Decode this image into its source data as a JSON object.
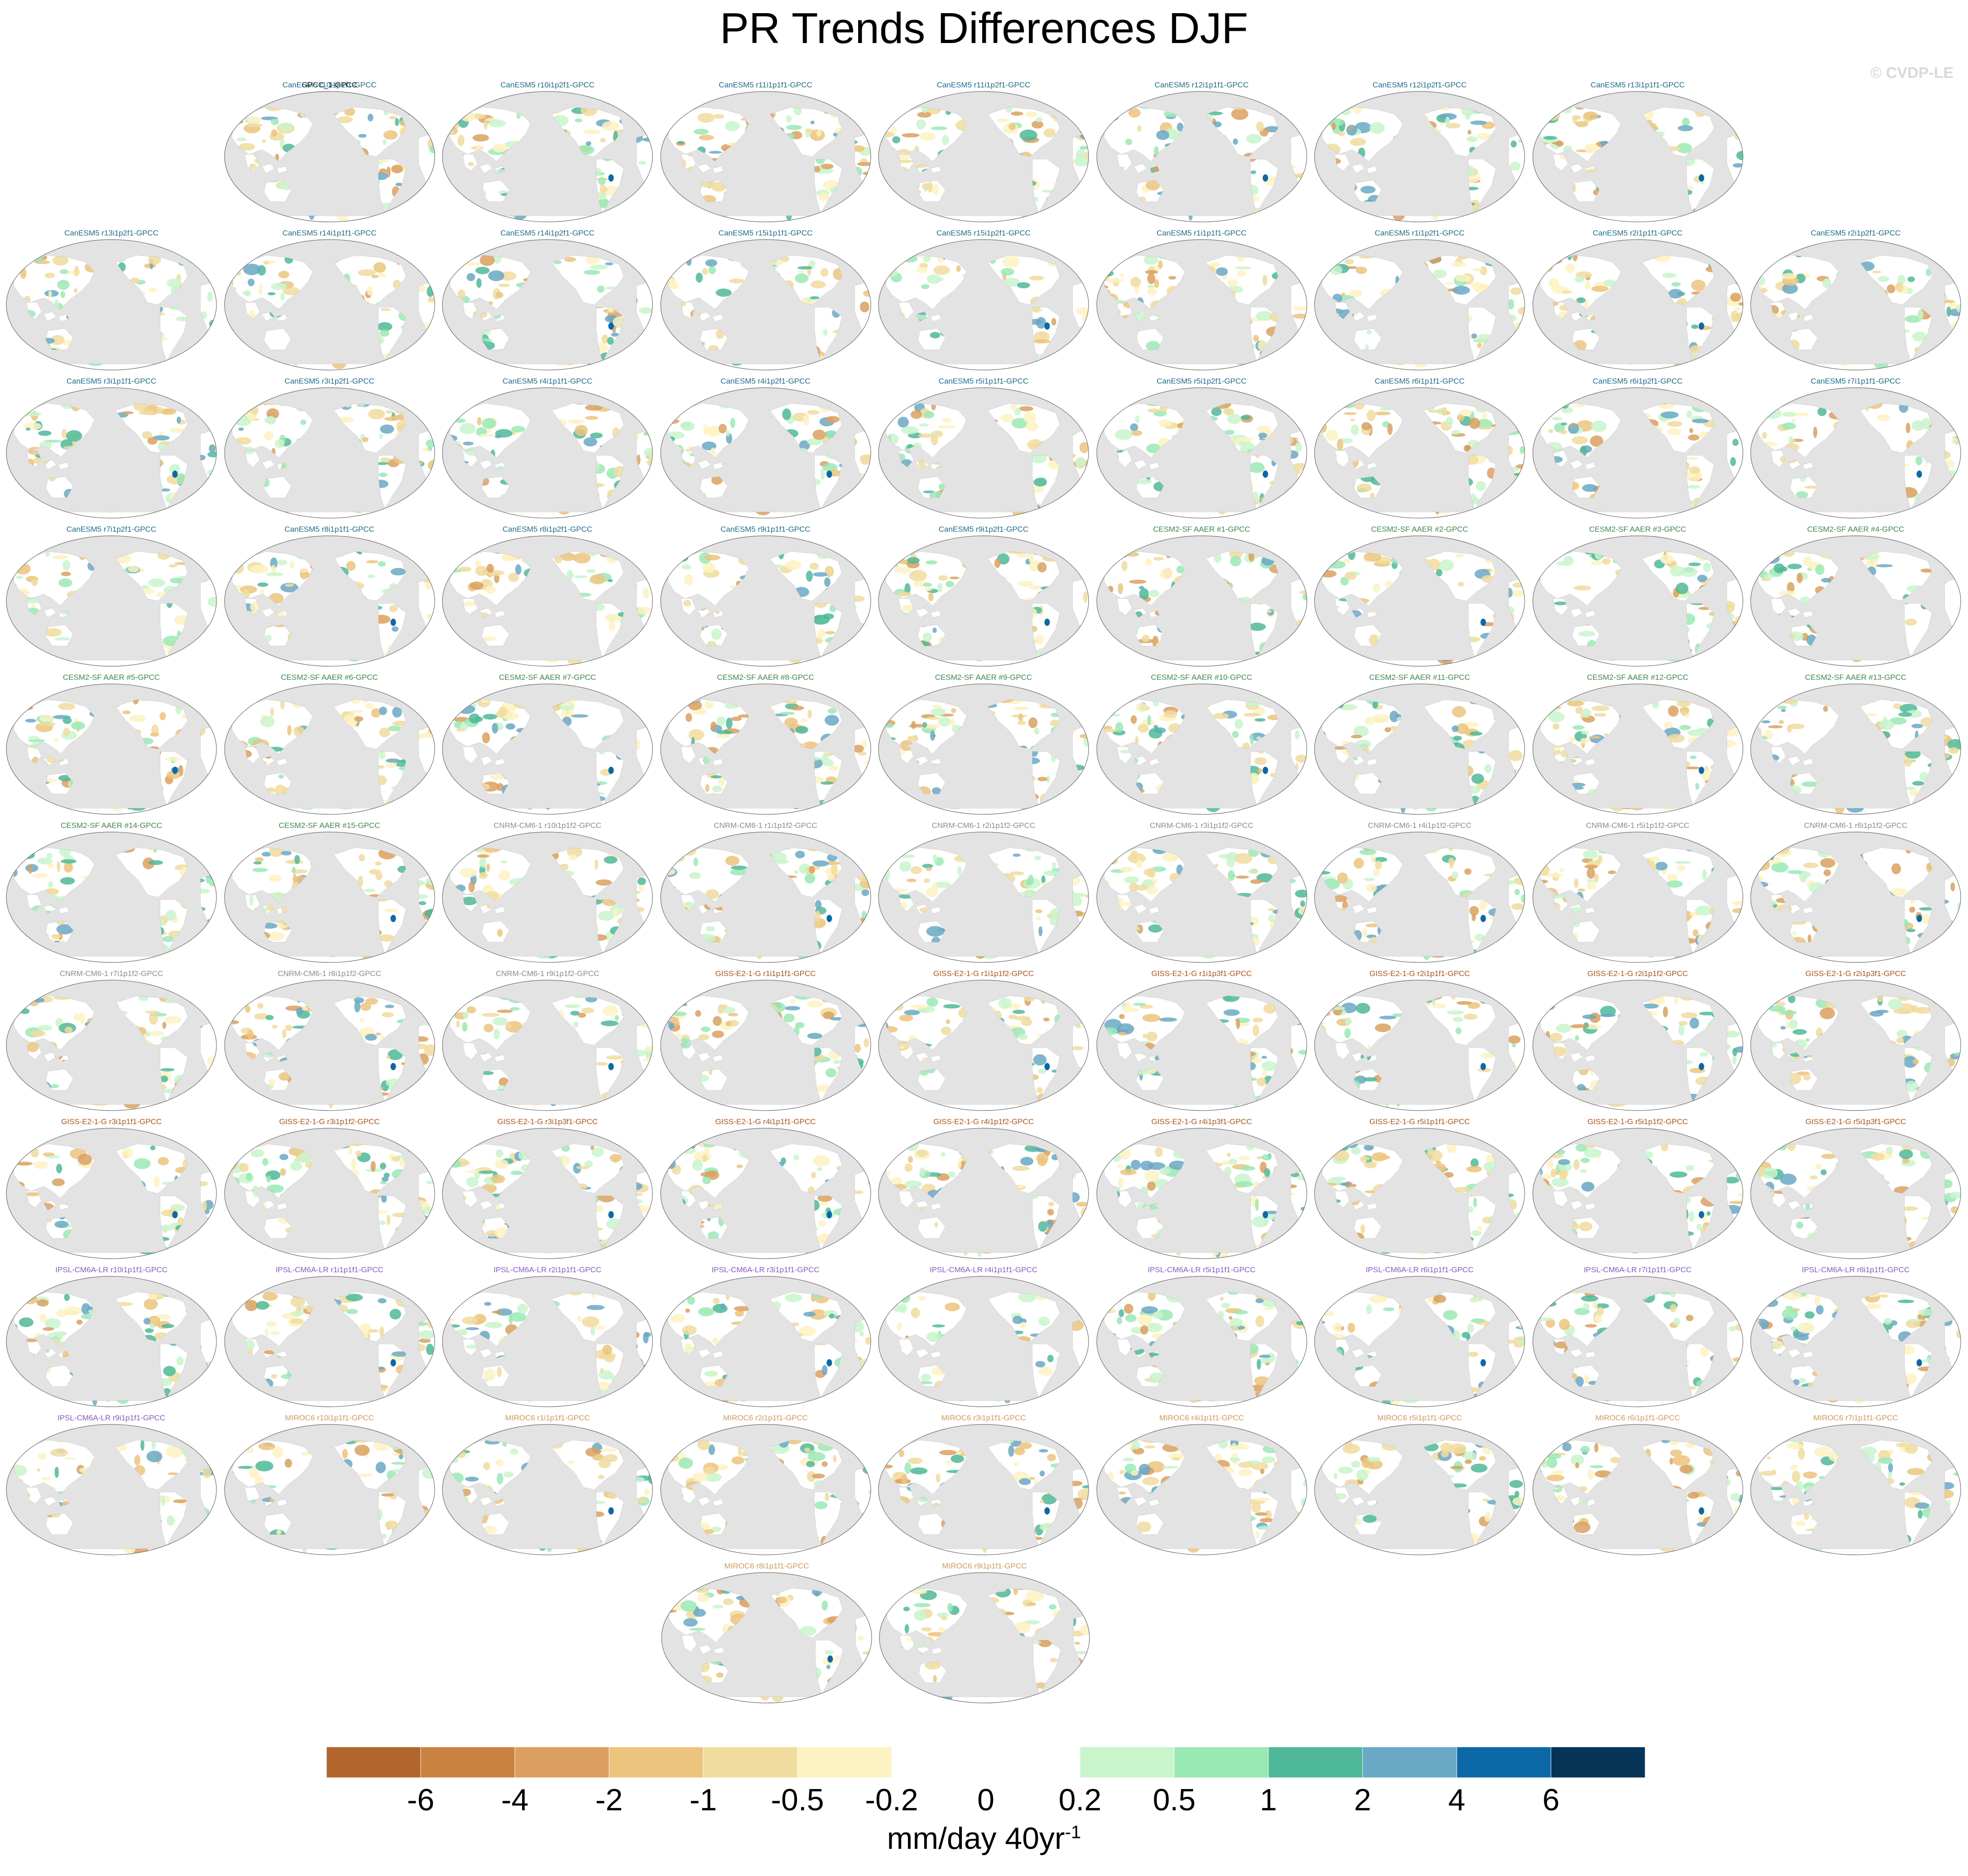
{
  "title": "PR Trends Differences DJF",
  "watermark": "© CVDP-LE",
  "colors": {
    "ocean": "#e3e3e3",
    "land_null": "#ffffff",
    "coastline": "#8c8c8c",
    "model_colors": {
      "GPCC": "#000000",
      "CanESM5": "#1f6e92",
      "CESM2-SF AAER": "#3f8a4f",
      "CNRM-CM6-1": "#8c8c8c",
      "GISS-E2-1-G": "#b5541c",
      "IPSL-CM6A-LR": "#8a5ad1",
      "MIROC6": "#d89a59"
    }
  },
  "panels": [
    {
      "label": "GPCC_1-GPCC",
      "model": "GPCC"
    },
    {
      "label": "CanESM5 r10i1p1f1-GPCC",
      "model": "CanESM5"
    },
    {
      "label": "CanESM5 r10i1p2f1-GPCC",
      "model": "CanESM5"
    },
    {
      "label": "CanESM5 r11i1p1f1-GPCC",
      "model": "CanESM5"
    },
    {
      "label": "CanESM5 r11i1p2f1-GPCC",
      "model": "CanESM5"
    },
    {
      "label": "CanESM5 r12i1p1f1-GPCC",
      "model": "CanESM5"
    },
    {
      "label": "CanESM5 r12i1p2f1-GPCC",
      "model": "CanESM5"
    },
    {
      "label": "CanESM5 r13i1p1f1-GPCC",
      "model": "CanESM5"
    },
    {
      "label": "CanESM5 r13i1p2f1-GPCC",
      "model": "CanESM5"
    },
    {
      "label": "CanESM5 r14i1p1f1-GPCC",
      "model": "CanESM5"
    },
    {
      "label": "CanESM5 r14i1p2f1-GPCC",
      "model": "CanESM5"
    },
    {
      "label": "CanESM5 r15i1p1f1-GPCC",
      "model": "CanESM5"
    },
    {
      "label": "CanESM5 r15i1p2f1-GPCC",
      "model": "CanESM5"
    },
    {
      "label": "CanESM5 r1i1p1f1-GPCC",
      "model": "CanESM5"
    },
    {
      "label": "CanESM5 r1i1p2f1-GPCC",
      "model": "CanESM5"
    },
    {
      "label": "CanESM5 r2i1p1f1-GPCC",
      "model": "CanESM5"
    },
    {
      "label": "CanESM5 r2i1p2f1-GPCC",
      "model": "CanESM5"
    },
    {
      "label": "CanESM5 r3i1p1f1-GPCC",
      "model": "CanESM5"
    },
    {
      "label": "CanESM5 r3i1p2f1-GPCC",
      "model": "CanESM5"
    },
    {
      "label": "CanESM5 r4i1p1f1-GPCC",
      "model": "CanESM5"
    },
    {
      "label": "CanESM5 r4i1p2f1-GPCC",
      "model": "CanESM5"
    },
    {
      "label": "CanESM5 r5i1p1f1-GPCC",
      "model": "CanESM5"
    },
    {
      "label": "CanESM5 r5i1p2f1-GPCC",
      "model": "CanESM5"
    },
    {
      "label": "CanESM5 r6i1p1f1-GPCC",
      "model": "CanESM5"
    },
    {
      "label": "CanESM5 r6i1p2f1-GPCC",
      "model": "CanESM5"
    },
    {
      "label": "CanESM5 r7i1p1f1-GPCC",
      "model": "CanESM5"
    },
    {
      "label": "CanESM5 r7i1p2f1-GPCC",
      "model": "CanESM5"
    },
    {
      "label": "CanESM5 r8i1p1f1-GPCC",
      "model": "CanESM5"
    },
    {
      "label": "CanESM5 r8i1p2f1-GPCC",
      "model": "CanESM5"
    },
    {
      "label": "CanESM5 r9i1p1f1-GPCC",
      "model": "CanESM5"
    },
    {
      "label": "CanESM5 r9i1p2f1-GPCC",
      "model": "CanESM5"
    },
    {
      "label": "CESM2-SF AAER #1-GPCC",
      "model": "CESM2-SF AAER"
    },
    {
      "label": "CESM2-SF AAER #2-GPCC",
      "model": "CESM2-SF AAER"
    },
    {
      "label": "CESM2-SF AAER #3-GPCC",
      "model": "CESM2-SF AAER"
    },
    {
      "label": "CESM2-SF AAER #4-GPCC",
      "model": "CESM2-SF AAER"
    },
    {
      "label": "CESM2-SF AAER #5-GPCC",
      "model": "CESM2-SF AAER"
    },
    {
      "label": "CESM2-SF AAER #6-GPCC",
      "model": "CESM2-SF AAER"
    },
    {
      "label": "CESM2-SF AAER #7-GPCC",
      "model": "CESM2-SF AAER"
    },
    {
      "label": "CESM2-SF AAER #8-GPCC",
      "model": "CESM2-SF AAER"
    },
    {
      "label": "CESM2-SF AAER #9-GPCC",
      "model": "CESM2-SF AAER"
    },
    {
      "label": "CESM2-SF AAER #10-GPCC",
      "model": "CESM2-SF AAER"
    },
    {
      "label": "CESM2-SF AAER #11-GPCC",
      "model": "CESM2-SF AAER"
    },
    {
      "label": "CESM2-SF AAER #12-GPCC",
      "model": "CESM2-SF AAER"
    },
    {
      "label": "CESM2-SF AAER #13-GPCC",
      "model": "CESM2-SF AAER"
    },
    {
      "label": "CESM2-SF AAER #14-GPCC",
      "model": "CESM2-SF AAER"
    },
    {
      "label": "CESM2-SF AAER #15-GPCC",
      "model": "CESM2-SF AAER"
    },
    {
      "label": "CNRM-CM6-1 r10i1p1f2-GPCC",
      "model": "CNRM-CM6-1"
    },
    {
      "label": "CNRM-CM6-1 r1i1p1f2-GPCC",
      "model": "CNRM-CM6-1"
    },
    {
      "label": "CNRM-CM6-1 r2i1p1f2-GPCC",
      "model": "CNRM-CM6-1"
    },
    {
      "label": "CNRM-CM6-1 r3i1p1f2-GPCC",
      "model": "CNRM-CM6-1"
    },
    {
      "label": "CNRM-CM6-1 r4i1p1f2-GPCC",
      "model": "CNRM-CM6-1"
    },
    {
      "label": "CNRM-CM6-1 r5i1p1f2-GPCC",
      "model": "CNRM-CM6-1"
    },
    {
      "label": "CNRM-CM6-1 r6i1p1f2-GPCC",
      "model": "CNRM-CM6-1"
    },
    {
      "label": "CNRM-CM6-1 r7i1p1f2-GPCC",
      "model": "CNRM-CM6-1"
    },
    {
      "label": "CNRM-CM6-1 r8i1p1f2-GPCC",
      "model": "CNRM-CM6-1"
    },
    {
      "label": "CNRM-CM6-1 r9i1p1f2-GPCC",
      "model": "CNRM-CM6-1"
    },
    {
      "label": "GISS-E2-1-G r1i1p1f1-GPCC",
      "model": "GISS-E2-1-G"
    },
    {
      "label": "GISS-E2-1-G r1i1p1f2-GPCC",
      "model": "GISS-E2-1-G"
    },
    {
      "label": "GISS-E2-1-G r1i1p3f1-GPCC",
      "model": "GISS-E2-1-G"
    },
    {
      "label": "GISS-E2-1-G r2i1p1f1-GPCC",
      "model": "GISS-E2-1-G"
    },
    {
      "label": "GISS-E2-1-G r2i1p1f2-GPCC",
      "model": "GISS-E2-1-G"
    },
    {
      "label": "GISS-E2-1-G r2i1p3f1-GPCC",
      "model": "GISS-E2-1-G"
    },
    {
      "label": "GISS-E2-1-G r3i1p1f1-GPCC",
      "model": "GISS-E2-1-G"
    },
    {
      "label": "GISS-E2-1-G r3i1p1f2-GPCC",
      "model": "GISS-E2-1-G"
    },
    {
      "label": "GISS-E2-1-G r3i1p3f1-GPCC",
      "model": "GISS-E2-1-G"
    },
    {
      "label": "GISS-E2-1-G r4i1p1f1-GPCC",
      "model": "GISS-E2-1-G"
    },
    {
      "label": "GISS-E2-1-G r4i1p1f2-GPCC",
      "model": "GISS-E2-1-G"
    },
    {
      "label": "GISS-E2-1-G r4i1p3f1-GPCC",
      "model": "GISS-E2-1-G"
    },
    {
      "label": "GISS-E2-1-G r5i1p1f1-GPCC",
      "model": "GISS-E2-1-G"
    },
    {
      "label": "GISS-E2-1-G r5i1p1f2-GPCC",
      "model": "GISS-E2-1-G"
    },
    {
      "label": "GISS-E2-1-G r5i1p3f1-GPCC",
      "model": "GISS-E2-1-G"
    },
    {
      "label": "IPSL-CM6A-LR r10i1p1f1-GPCC",
      "model": "IPSL-CM6A-LR"
    },
    {
      "label": "IPSL-CM6A-LR r1i1p1f1-GPCC",
      "model": "IPSL-CM6A-LR"
    },
    {
      "label": "IPSL-CM6A-LR r2i1p1f1-GPCC",
      "model": "IPSL-CM6A-LR"
    },
    {
      "label": "IPSL-CM6A-LR r3i1p1f1-GPCC",
      "model": "IPSL-CM6A-LR"
    },
    {
      "label": "IPSL-CM6A-LR r4i1p1f1-GPCC",
      "model": "IPSL-CM6A-LR"
    },
    {
      "label": "IPSL-CM6A-LR r5i1p1f1-GPCC",
      "model": "IPSL-CM6A-LR"
    },
    {
      "label": "IPSL-CM6A-LR r6i1p1f1-GPCC",
      "model": "IPSL-CM6A-LR"
    },
    {
      "label": "IPSL-CM6A-LR r7i1p1f1-GPCC",
      "model": "IPSL-CM6A-LR"
    },
    {
      "label": "IPSL-CM6A-LR r8i1p1f1-GPCC",
      "model": "IPSL-CM6A-LR"
    },
    {
      "label": "IPSL-CM6A-LR r9i1p1f1-GPCC",
      "model": "IPSL-CM6A-LR"
    },
    {
      "label": "MIROC6 r10i1p1f1-GPCC",
      "model": "MIROC6"
    },
    {
      "label": "MIROC6 r1i1p1f1-GPCC",
      "model": "MIROC6"
    },
    {
      "label": "MIROC6 r2i1p1f1-GPCC",
      "model": "MIROC6"
    },
    {
      "label": "MIROC6 r3i1p1f1-GPCC",
      "model": "MIROC6"
    },
    {
      "label": "MIROC6 r4i1p1f1-GPCC",
      "model": "MIROC6"
    },
    {
      "label": "MIROC6 r5i1p1f1-GPCC",
      "model": "MIROC6"
    },
    {
      "label": "MIROC6 r6i1p1f1-GPCC",
      "model": "MIROC6"
    },
    {
      "label": "MIROC6 r7i1p1f1-GPCC",
      "model": "MIROC6"
    },
    {
      "label": "MIROC6 r8i1p1f1-GPCC",
      "model": "MIROC6"
    },
    {
      "label": "MIROC6 r9i1p1f1-GPCC",
      "model": "MIROC6"
    }
  ],
  "colorbar": {
    "colors": [
      "#b3662b",
      "#c9823f",
      "#dba05f",
      "#ecc47e",
      "#f1dc9f",
      "#fdf2c2",
      "#ffffff",
      "#ffffff",
      "#c9f5cc",
      "#9ae9b4",
      "#4fb898",
      "#6aa8c6",
      "#0b69a8",
      "#053456"
    ],
    "tick_labels": [
      "-6",
      "-4",
      "-2",
      "-1",
      "-0.5",
      "-0.2",
      "0",
      "0.2",
      "0.5",
      "1",
      "2",
      "4",
      "6"
    ],
    "units_main": "mm/day 40yr",
    "units_sup": "-1"
  }
}
